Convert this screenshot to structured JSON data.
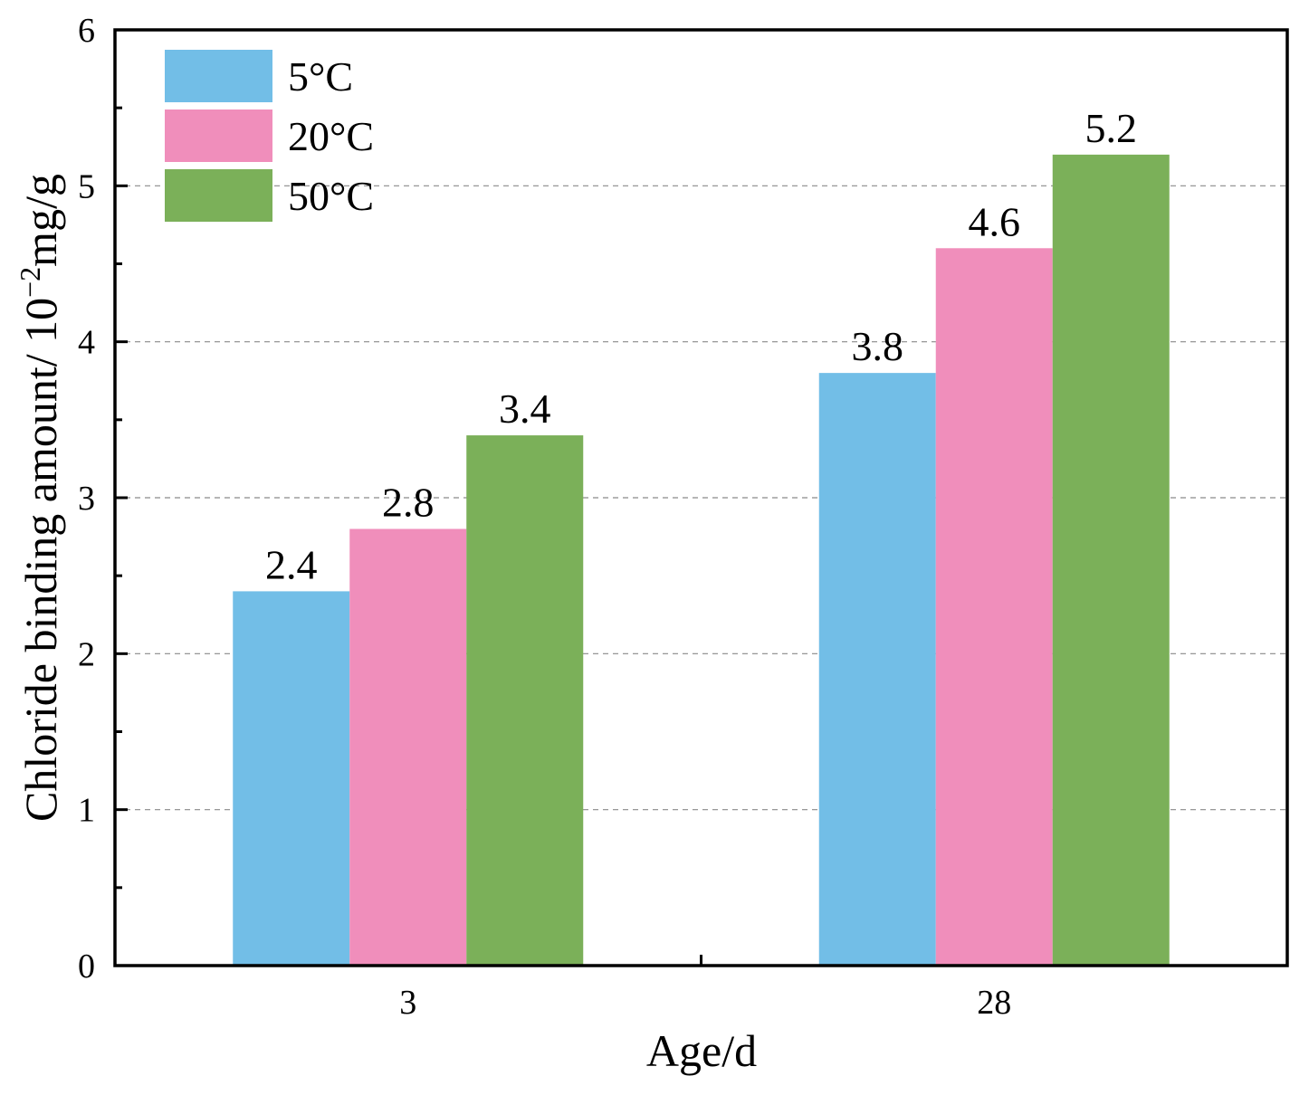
{
  "chart_data": {
    "type": "bar",
    "title": "",
    "xlabel": "Age/d",
    "ylabel": {
      "main": "Chloride binding amount/ 10",
      "superscript": "−2",
      "unit": "mg/g"
    },
    "categories": [
      "3",
      "28"
    ],
    "series": [
      {
        "name": "5°C",
        "values": [
          2.4,
          3.8
        ],
        "labels": [
          "2.4",
          "3.8"
        ],
        "color": "#72BEE7"
      },
      {
        "name": "20°C",
        "values": [
          2.8,
          4.6
        ],
        "labels": [
          "2.8",
          "4.6"
        ],
        "color": "#F08EBB"
      },
      {
        "name": "50°C",
        "values": [
          3.4,
          5.2
        ],
        "labels": [
          "3.4",
          "5.2"
        ],
        "color": "#7BB059"
      }
    ],
    "ylim": [
      0,
      6
    ],
    "yticks": [
      0,
      1,
      2,
      3,
      4,
      5,
      6
    ],
    "ytick_labels": [
      "0",
      "1",
      "2",
      "3",
      "4",
      "5",
      "6"
    ],
    "grid": "horizontal dashed",
    "legend_position": "top-left"
  }
}
